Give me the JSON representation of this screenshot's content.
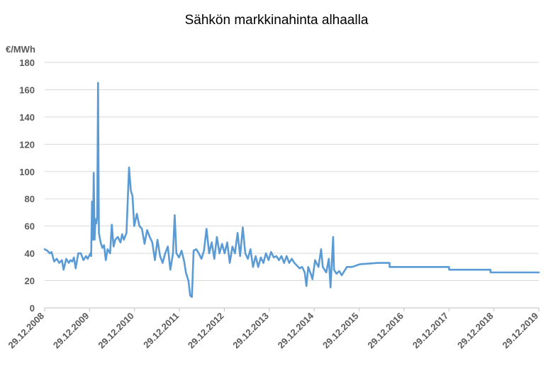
{
  "chart_data": {
    "type": "line",
    "title": "Sähkön markkinahinta  alhaalla",
    "ylabel": "€/MWh",
    "xlabel": "",
    "ylim": [
      0,
      180
    ],
    "yticks": [
      "0",
      "20",
      "40",
      "60",
      "80",
      "100",
      "120",
      "140",
      "160",
      "180"
    ],
    "xlim": [
      "2008-12-29",
      "2019-12-29"
    ],
    "xticks": [
      "29.12.2008",
      "29.12.2009",
      "29.12.2010",
      "29.12.2011",
      "29.12.2012",
      "29.12.2013",
      "29.12.2014",
      "29.12.2015",
      "29.12.2016",
      "29.12.2017",
      "29.12.2018",
      "29.12.2019"
    ],
    "grid": true,
    "line_color": "#5B9BD5",
    "series": [
      {
        "points": [
          [
            "2008-12-29",
            43
          ],
          [
            "2009-01-19",
            42
          ],
          [
            "2009-02-09",
            40
          ],
          [
            "2009-02-23",
            41
          ],
          [
            "2009-03-16",
            34
          ],
          [
            "2009-04-06",
            36
          ],
          [
            "2009-04-27",
            33
          ],
          [
            "2009-05-18",
            35
          ],
          [
            "2009-06-01",
            28
          ],
          [
            "2009-06-22",
            36
          ],
          [
            "2009-07-13",
            33
          ],
          [
            "2009-07-27",
            35
          ],
          [
            "2009-08-10",
            34
          ],
          [
            "2009-08-24",
            37
          ],
          [
            "2009-09-07",
            29
          ],
          [
            "2009-09-28",
            40
          ],
          [
            "2009-10-19",
            40
          ],
          [
            "2009-11-09",
            35
          ],
          [
            "2009-11-30",
            38
          ],
          [
            "2009-12-14",
            36
          ],
          [
            "2010-01-04",
            40
          ],
          [
            "2010-01-11",
            38
          ],
          [
            "2010-01-18",
            78
          ],
          [
            "2010-01-25",
            50
          ],
          [
            "2010-02-01",
            99
          ],
          [
            "2010-02-08",
            50
          ],
          [
            "2010-02-15",
            65
          ],
          [
            "2010-02-22",
            62
          ],
          [
            "2010-03-01",
            67
          ],
          [
            "2010-03-08",
            165
          ],
          [
            "2010-03-15",
            55
          ],
          [
            "2010-03-29",
            48
          ],
          [
            "2010-04-12",
            44
          ],
          [
            "2010-04-26",
            46
          ],
          [
            "2010-05-10",
            35
          ],
          [
            "2010-05-24",
            43
          ],
          [
            "2010-06-14",
            40
          ],
          [
            "2010-06-28",
            61
          ],
          [
            "2010-07-12",
            45
          ],
          [
            "2010-07-26",
            50
          ],
          [
            "2010-08-16",
            52
          ],
          [
            "2010-09-06",
            48
          ],
          [
            "2010-09-20",
            54
          ],
          [
            "2010-10-04",
            50
          ],
          [
            "2010-10-25",
            55
          ],
          [
            "2010-11-15",
            103
          ],
          [
            "2010-11-29",
            86
          ],
          [
            "2010-12-13",
            82
          ],
          [
            "2010-12-27",
            60
          ],
          [
            "2011-01-17",
            69
          ],
          [
            "2011-02-07",
            60
          ],
          [
            "2011-02-28",
            58
          ],
          [
            "2011-03-21",
            47
          ],
          [
            "2011-04-11",
            57
          ],
          [
            "2011-05-02",
            52
          ],
          [
            "2011-05-23",
            48
          ],
          [
            "2011-06-13",
            35
          ],
          [
            "2011-07-04",
            50
          ],
          [
            "2011-07-25",
            38
          ],
          [
            "2011-08-15",
            33
          ],
          [
            "2011-09-05",
            40
          ],
          [
            "2011-09-26",
            45
          ],
          [
            "2011-10-17",
            28
          ],
          [
            "2011-11-07",
            40
          ],
          [
            "2011-11-21",
            68
          ],
          [
            "2011-12-05",
            40
          ],
          [
            "2011-12-26",
            37
          ],
          [
            "2012-01-16",
            42
          ],
          [
            "2012-02-06",
            34
          ],
          [
            "2012-02-20",
            26
          ],
          [
            "2012-03-12",
            20
          ],
          [
            "2012-03-26",
            9
          ],
          [
            "2012-04-09",
            8
          ],
          [
            "2012-04-23",
            42
          ],
          [
            "2012-05-14",
            43
          ],
          [
            "2012-06-04",
            40
          ],
          [
            "2012-06-25",
            36
          ],
          [
            "2012-07-16",
            42
          ],
          [
            "2012-08-06",
            58
          ],
          [
            "2012-08-27",
            40
          ],
          [
            "2012-09-17",
            48
          ],
          [
            "2012-10-08",
            36
          ],
          [
            "2012-10-29",
            52
          ],
          [
            "2012-11-19",
            40
          ],
          [
            "2012-12-10",
            47
          ],
          [
            "2012-12-31",
            40
          ],
          [
            "2013-01-21",
            48
          ],
          [
            "2013-02-11",
            33
          ],
          [
            "2013-03-04",
            45
          ],
          [
            "2013-03-25",
            40
          ],
          [
            "2013-04-15",
            55
          ],
          [
            "2013-05-06",
            38
          ],
          [
            "2013-05-27",
            59
          ],
          [
            "2013-06-17",
            40
          ],
          [
            "2013-07-08",
            36
          ],
          [
            "2013-07-29",
            43
          ],
          [
            "2013-08-19",
            30
          ],
          [
            "2013-09-09",
            38
          ],
          [
            "2013-09-30",
            30
          ],
          [
            "2013-10-21",
            37
          ],
          [
            "2013-11-11",
            33
          ],
          [
            "2013-12-02",
            40
          ],
          [
            "2013-12-23",
            35
          ],
          [
            "2014-01-13",
            41
          ],
          [
            "2014-02-03",
            37
          ],
          [
            "2014-02-24",
            38
          ],
          [
            "2014-03-17",
            35
          ],
          [
            "2014-04-07",
            38
          ],
          [
            "2014-04-28",
            33
          ],
          [
            "2014-05-19",
            38
          ],
          [
            "2014-06-09",
            33
          ],
          [
            "2014-06-30",
            36
          ],
          [
            "2014-07-21",
            33
          ],
          [
            "2014-08-11",
            31
          ],
          [
            "2014-09-01",
            29
          ],
          [
            "2014-09-22",
            30
          ],
          [
            "2014-10-13",
            26
          ],
          [
            "2014-10-27",
            16
          ],
          [
            "2014-11-10",
            30
          ],
          [
            "2014-12-01",
            25
          ],
          [
            "2014-12-15",
            21
          ],
          [
            "2015-01-05",
            35
          ],
          [
            "2015-02-02",
            30
          ],
          [
            "2015-02-23",
            43
          ],
          [
            "2015-03-09",
            30
          ],
          [
            "2015-04-06",
            26
          ],
          [
            "2015-04-27",
            36
          ],
          [
            "2015-05-11",
            15
          ],
          [
            "2015-06-01",
            52
          ],
          [
            "2015-06-08",
            28
          ],
          [
            "2015-06-29",
            25
          ],
          [
            "2015-07-20",
            27
          ],
          [
            "2015-08-10",
            24
          ],
          [
            "2015-08-31",
            27
          ],
          [
            "2015-09-21",
            30
          ],
          [
            "2015-11-02",
            30
          ],
          [
            "2016-01-04",
            32
          ],
          [
            "2016-06-01",
            33
          ],
          [
            "2016-09-01",
            33
          ],
          [
            "2016-09-02",
            30
          ],
          [
            "2017-12-29",
            30
          ],
          [
            "2017-12-30",
            28
          ],
          [
            "2018-12-01",
            28
          ],
          [
            "2018-12-02",
            26
          ],
          [
            "2019-12-29",
            26
          ]
        ]
      }
    ]
  }
}
